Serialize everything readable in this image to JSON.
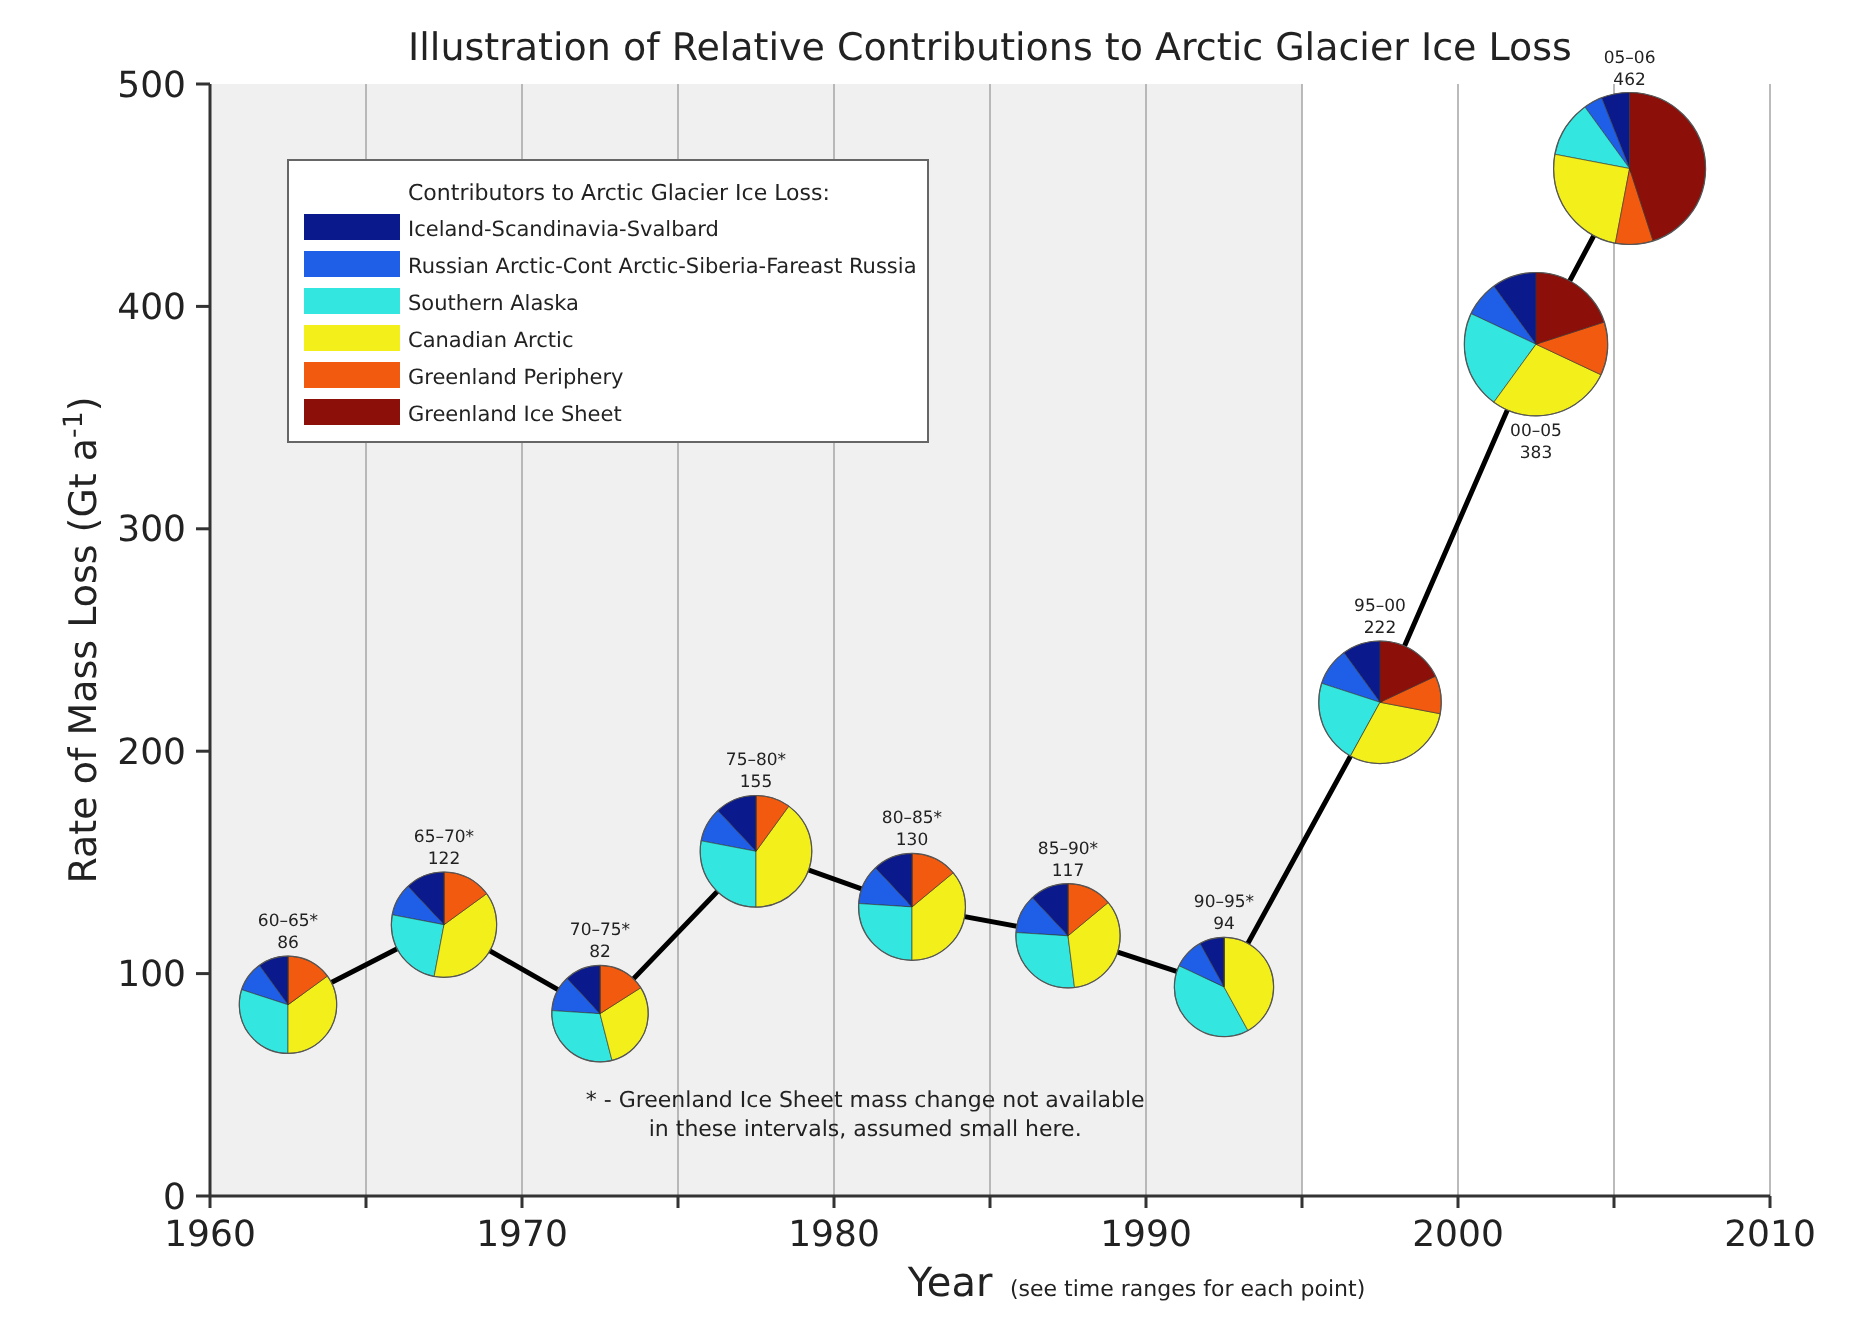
{
  "chart_data": [
    {
      "type": "line",
      "title": "Illustration of Relative Contributions to Arctic Glacier Ice Loss",
      "xlabel": "Year",
      "ylabel": "Rate of Mass Loss (Gt a$^{-1}$)",
      "x": [
        1962.5,
        1967.5,
        1972.5,
        1977.5,
        1982.5,
        1987.5,
        1992.5,
        1997.5,
        2002.5,
        2005.5
      ],
      "series": [
        {
          "color": "#000000",
          "values": [
            86,
            122,
            82,
            155,
            130,
            117,
            94,
            222,
            383,
            462
          ]
        }
      ],
      "annotations": [
        "60–65*",
        "65–70*",
        "70–75*",
        "75–80*",
        "80–85*",
        "85–90*",
        "90–95*",
        "95–00",
        "00–05",
        "05–06",
        "86",
        "122",
        "82",
        "155",
        "130",
        "117",
        "94",
        "222",
        "383",
        "462",
        "* - Greenland Ice Sheet mass change not available in these intervals, assumed small here.",
        "(see time ranges for each point)"
      ],
      "xlim": [
        1960,
        2010
      ],
      "xticks": [
        1960,
        {
          "value": 1965,
          "label": null
        },
        1970,
        {
          "value": 1975,
          "label": null
        },
        1980,
        {
          "value": 1985,
          "label": null
        },
        1990,
        {
          "value": 1995,
          "label": null
        },
        2000,
        {
          "value": 2005,
          "label": null
        },
        2010
      ],
      "ylim": [
        0,
        500
      ],
      "yticks": [
        0,
        100,
        200,
        300,
        400,
        500
      ],
      "grid": "x",
      "marker": "none",
      "line_style": "solid",
      "bands": [
        {
          "axis": "x",
          "from": 1960,
          "to": 1995,
          "color": "#f0f0f0"
        }
      ]
    },
    {
      "type": "pie",
      "legend": "top right",
      "legend_title": "Contributors to Arctic Glacier Ice Loss:",
      "categories": [
        "Iceland-Scandinavia-Svalbard",
        "Russian Arctic-Cont Arctic-Siberia-Fareast Russia",
        "Southern Alaska",
        "Canadian Arctic",
        "Greenland Periphery",
        "Greenland Ice Sheet"
      ],
      "colors": [
        "#0a1a8c",
        "#1f5fe8",
        "#33e6e0",
        "#f2ef1a",
        "#f25a0f",
        "#8c0f0a"
      ],
      "values": [
        10,
        10,
        30,
        35,
        15,
        0
      ]
    },
    {
      "type": "pie",
      "categories": [
        null,
        null,
        null,
        null,
        null,
        null
      ],
      "colors": [
        "#0a1a8c",
        "#1f5fe8",
        "#33e6e0",
        "#f2ef1a",
        "#f25a0f",
        "#8c0f0a"
      ],
      "values": [
        12,
        10,
        25,
        38,
        15,
        0
      ]
    },
    {
      "type": "pie",
      "categories": [
        null,
        null,
        null,
        null,
        null,
        null
      ],
      "colors": [
        "#0a1a8c",
        "#1f5fe8",
        "#33e6e0",
        "#f2ef1a",
        "#f25a0f",
        "#8c0f0a"
      ],
      "values": [
        12,
        12,
        30,
        30,
        16,
        0
      ]
    },
    {
      "type": "pie",
      "categories": [
        null,
        null,
        null,
        null,
        null,
        null
      ],
      "colors": [
        "#0a1a8c",
        "#1f5fe8",
        "#33e6e0",
        "#f2ef1a",
        "#f25a0f",
        "#8c0f0a"
      ],
      "values": [
        12,
        10,
        28,
        40,
        10,
        0
      ]
    },
    {
      "type": "pie",
      "categories": [
        null,
        null,
        null,
        null,
        null,
        null
      ],
      "colors": [
        "#0a1a8c",
        "#1f5fe8",
        "#33e6e0",
        "#f2ef1a",
        "#f25a0f",
        "#8c0f0a"
      ],
      "values": [
        12,
        12,
        26,
        36,
        14,
        0
      ]
    },
    {
      "type": "pie",
      "categories": [
        null,
        null,
        null,
        null,
        null,
        null
      ],
      "colors": [
        "#0a1a8c",
        "#1f5fe8",
        "#33e6e0",
        "#f2ef1a",
        "#f25a0f",
        "#8c0f0a"
      ],
      "values": [
        12,
        12,
        28,
        34,
        14,
        0
      ]
    },
    {
      "type": "pie",
      "categories": [
        null,
        null,
        null,
        null,
        null,
        null
      ],
      "colors": [
        "#0a1a8c",
        "#1f5fe8",
        "#33e6e0",
        "#f2ef1a",
        "#f25a0f",
        "#8c0f0a"
      ],
      "values": [
        8,
        10,
        40,
        42,
        0,
        0
      ]
    },
    {
      "type": "pie",
      "categories": [
        null,
        null,
        null,
        null,
        null,
        null
      ],
      "colors": [
        "#0a1a8c",
        "#1f5fe8",
        "#33e6e0",
        "#f2ef1a",
        "#f25a0f",
        "#8c0f0a"
      ],
      "values": [
        10,
        10,
        22,
        30,
        10,
        18
      ]
    },
    {
      "type": "pie",
      "categories": [
        null,
        null,
        null,
        null,
        null,
        null
      ],
      "colors": [
        "#0a1a8c",
        "#1f5fe8",
        "#33e6e0",
        "#f2ef1a",
        "#f25a0f",
        "#8c0f0a"
      ],
      "values": [
        10,
        8,
        22,
        28,
        12,
        20
      ]
    },
    {
      "type": "pie",
      "categories": [
        null,
        null,
        null,
        null,
        null,
        null
      ],
      "colors": [
        "#0a1a8c",
        "#1f5fe8",
        "#33e6e0",
        "#f2ef1a",
        "#f25a0f",
        "#8c0f0a"
      ],
      "values": [
        6,
        4,
        12,
        25,
        8,
        45
      ]
    }
  ]
}
